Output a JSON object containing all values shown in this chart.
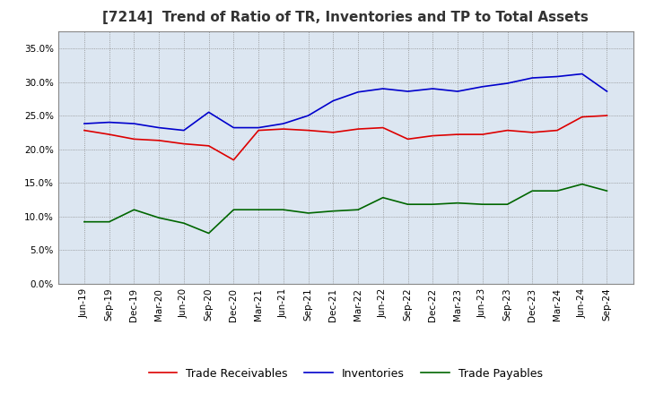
{
  "title": "[7214]  Trend of Ratio of TR, Inventories and TP to Total Assets",
  "x_labels": [
    "Jun-19",
    "Sep-19",
    "Dec-19",
    "Mar-20",
    "Jun-20",
    "Sep-20",
    "Dec-20",
    "Mar-21",
    "Jun-21",
    "Sep-21",
    "Dec-21",
    "Mar-22",
    "Jun-22",
    "Sep-22",
    "Dec-22",
    "Mar-23",
    "Jun-23",
    "Sep-23",
    "Dec-23",
    "Mar-24",
    "Jun-24",
    "Sep-24"
  ],
  "trade_receivables": [
    0.228,
    0.222,
    0.215,
    0.213,
    0.208,
    0.205,
    0.184,
    0.228,
    0.23,
    0.228,
    0.225,
    0.23,
    0.232,
    0.215,
    0.22,
    0.222,
    0.222,
    0.228,
    0.225,
    0.228,
    0.248,
    0.25
  ],
  "inventories": [
    0.238,
    0.24,
    0.238,
    0.232,
    0.228,
    0.255,
    0.232,
    0.232,
    0.238,
    0.25,
    0.272,
    0.285,
    0.29,
    0.286,
    0.29,
    0.286,
    0.293,
    0.298,
    0.306,
    0.308,
    0.312,
    0.286
  ],
  "trade_payables": [
    0.092,
    0.092,
    0.11,
    0.098,
    0.09,
    0.075,
    0.11,
    0.11,
    0.11,
    0.105,
    0.108,
    0.11,
    0.128,
    0.118,
    0.118,
    0.12,
    0.118,
    0.118,
    0.138,
    0.138,
    0.148,
    0.138
  ],
  "tr_color": "#dd0000",
  "inv_color": "#0000cc",
  "tp_color": "#006600",
  "ylim": [
    0.0,
    0.375
  ],
  "yticks": [
    0.0,
    0.05,
    0.1,
    0.15,
    0.2,
    0.25,
    0.3,
    0.35
  ],
  "plot_bg_color": "#dce6f1",
  "background_color": "#ffffff",
  "grid_color": "#888888",
  "title_fontsize": 11,
  "tick_fontsize": 7.5
}
